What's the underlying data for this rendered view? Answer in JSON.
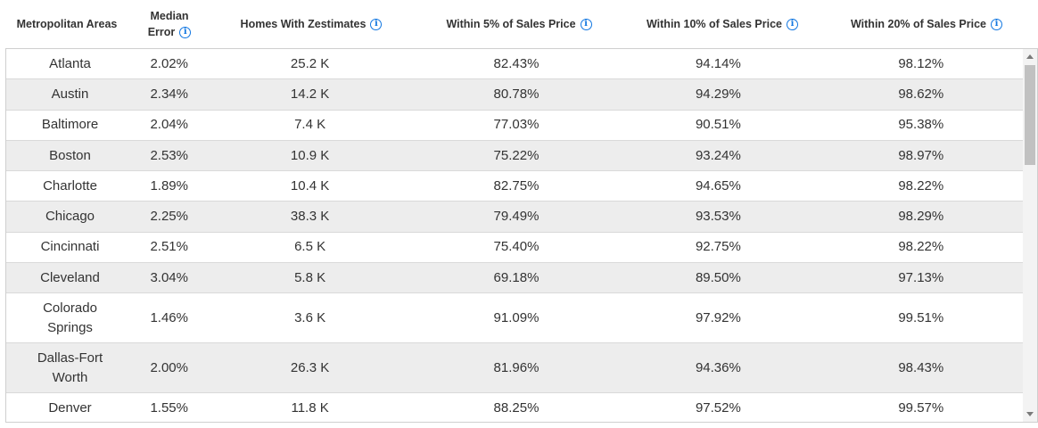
{
  "header": {
    "col_metro": "Metropolitan Areas",
    "col_median_line1": "Median",
    "col_median_line2": "Error",
    "col_homes": "Homes With Zestimates",
    "col_w5": "Within 5% of Sales Price",
    "col_w10": "Within 10% of Sales Price",
    "col_w20": "Within 20% of Sales Price",
    "info_glyph": "i"
  },
  "rows": [
    {
      "metro_l1": "Atlanta",
      "metro_l2": "",
      "median": "2.02%",
      "homes": "25.2 K",
      "w5": "82.43%",
      "w10": "94.14%",
      "w20": "98.12%"
    },
    {
      "metro_l1": "Austin",
      "metro_l2": "",
      "median": "2.34%",
      "homes": "14.2 K",
      "w5": "80.78%",
      "w10": "94.29%",
      "w20": "98.62%"
    },
    {
      "metro_l1": "Baltimore",
      "metro_l2": "",
      "median": "2.04%",
      "homes": "7.4 K",
      "w5": "77.03%",
      "w10": "90.51%",
      "w20": "95.38%"
    },
    {
      "metro_l1": "Boston",
      "metro_l2": "",
      "median": "2.53%",
      "homes": "10.9 K",
      "w5": "75.22%",
      "w10": "93.24%",
      "w20": "98.97%"
    },
    {
      "metro_l1": "Charlotte",
      "metro_l2": "",
      "median": "1.89%",
      "homes": "10.4 K",
      "w5": "82.75%",
      "w10": "94.65%",
      "w20": "98.22%"
    },
    {
      "metro_l1": "Chicago",
      "metro_l2": "",
      "median": "2.25%",
      "homes": "38.3 K",
      "w5": "79.49%",
      "w10": "93.53%",
      "w20": "98.29%"
    },
    {
      "metro_l1": "Cincinnati",
      "metro_l2": "",
      "median": "2.51%",
      "homes": "6.5 K",
      "w5": "75.40%",
      "w10": "92.75%",
      "w20": "98.22%"
    },
    {
      "metro_l1": "Cleveland",
      "metro_l2": "",
      "median": "3.04%",
      "homes": "5.8 K",
      "w5": "69.18%",
      "w10": "89.50%",
      "w20": "97.13%"
    },
    {
      "metro_l1": "Colorado",
      "metro_l2": "Springs",
      "median": "1.46%",
      "homes": "3.6 K",
      "w5": "91.09%",
      "w10": "97.92%",
      "w20": "99.51%"
    },
    {
      "metro_l1": "Dallas-Fort",
      "metro_l2": "Worth",
      "median": "2.00%",
      "homes": "26.3 K",
      "w5": "81.96%",
      "w10": "94.36%",
      "w20": "98.43%"
    },
    {
      "metro_l1": "Denver",
      "metro_l2": "",
      "median": "1.55%",
      "homes": "11.8 K",
      "w5": "88.25%",
      "w10": "97.52%",
      "w20": "99.57%"
    }
  ],
  "colors": {
    "info_blue": "#1277e1",
    "row_alt": "#ededed",
    "border": "#cfcfcf"
  }
}
